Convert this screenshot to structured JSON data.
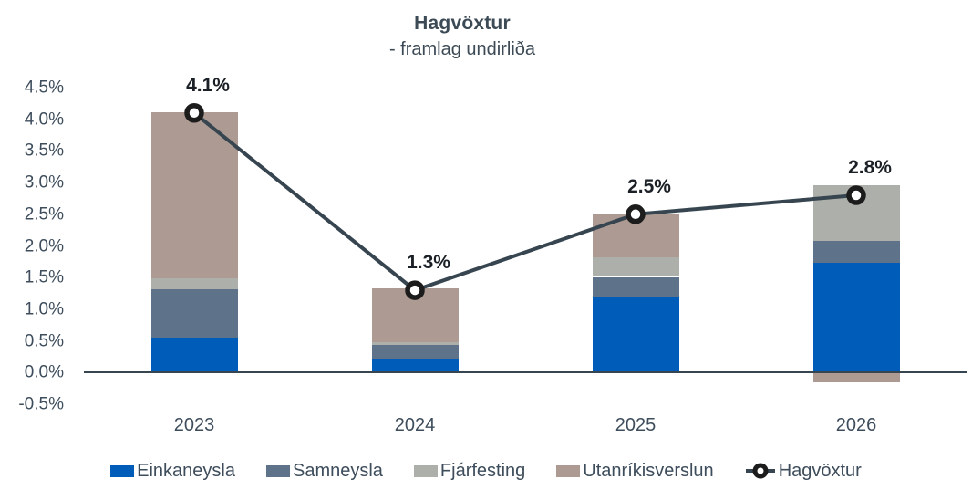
{
  "title": "Hagvöxtur",
  "subtitle": "- framlag undirliða",
  "colors": {
    "einkaneysla": "#005CB9",
    "samneysla": "#5E7389",
    "fjarfesting": "#ADB0AA",
    "utanrikisverslun": "#AD9B93",
    "line": "#36454F",
    "marker_ring": "#1C1C1C",
    "marker_fill": "#FFFFFF",
    "axis_text": "#3E4D5C",
    "title_text": "#3C4A56",
    "data_label_text": "#1B2026",
    "axis_line": "#36454F"
  },
  "chart_data": {
    "type": "bar",
    "subtype": "stacked-bar-with-line",
    "title": "Hagvöxtur",
    "subtitle": "- framlag undirliða",
    "categories": [
      "2023",
      "2024",
      "2025",
      "2026"
    ],
    "series": [
      {
        "name": "Einkaneysla",
        "color_key": "einkaneysla",
        "values": [
          0.55,
          0.22,
          1.18,
          1.73
        ]
      },
      {
        "name": "Samneysla",
        "color_key": "samneysla",
        "values": [
          0.76,
          0.21,
          0.33,
          0.35
        ]
      },
      {
        "name": "Fjárfesting",
        "color_key": "fjarfesting",
        "values": [
          0.18,
          0.05,
          0.31,
          0.88
        ]
      },
      {
        "name": "Utanríkisverslun",
        "color_key": "utanrikisverslun",
        "values": [
          2.62,
          0.85,
          0.68,
          -0.15
        ]
      }
    ],
    "line_series": {
      "name": "Hagvöxtur",
      "values": [
        4.1,
        1.3,
        2.5,
        2.8
      ],
      "labels": [
        "4.1%",
        "1.3%",
        "2.5%",
        "2.8%"
      ]
    },
    "ylim": [
      -0.5,
      4.5
    ],
    "yticks": [
      "4.5%",
      "4.0%",
      "3.5%",
      "3.0%",
      "2.5%",
      "2.0%",
      "1.5%",
      "1.0%",
      "0.5%",
      "0.0%",
      "-0.5%"
    ],
    "ytick_values": [
      4.5,
      4.0,
      3.5,
      3.0,
      2.5,
      2.0,
      1.5,
      1.0,
      0.5,
      0.0,
      -0.5
    ],
    "grid": false,
    "legend_position": "bottom"
  },
  "legend": {
    "items": [
      {
        "label": "Einkaneysla",
        "color_key": "einkaneysla",
        "kind": "swatch"
      },
      {
        "label": "Samneysla",
        "color_key": "samneysla",
        "kind": "swatch"
      },
      {
        "label": "Fjárfesting",
        "color_key": "fjarfesting",
        "kind": "swatch"
      },
      {
        "label": "Utanríkisverslun",
        "color_key": "utanrikisverslun",
        "kind": "swatch"
      },
      {
        "label": "Hagvöxtur",
        "color_key": "line",
        "kind": "line-marker"
      }
    ]
  }
}
